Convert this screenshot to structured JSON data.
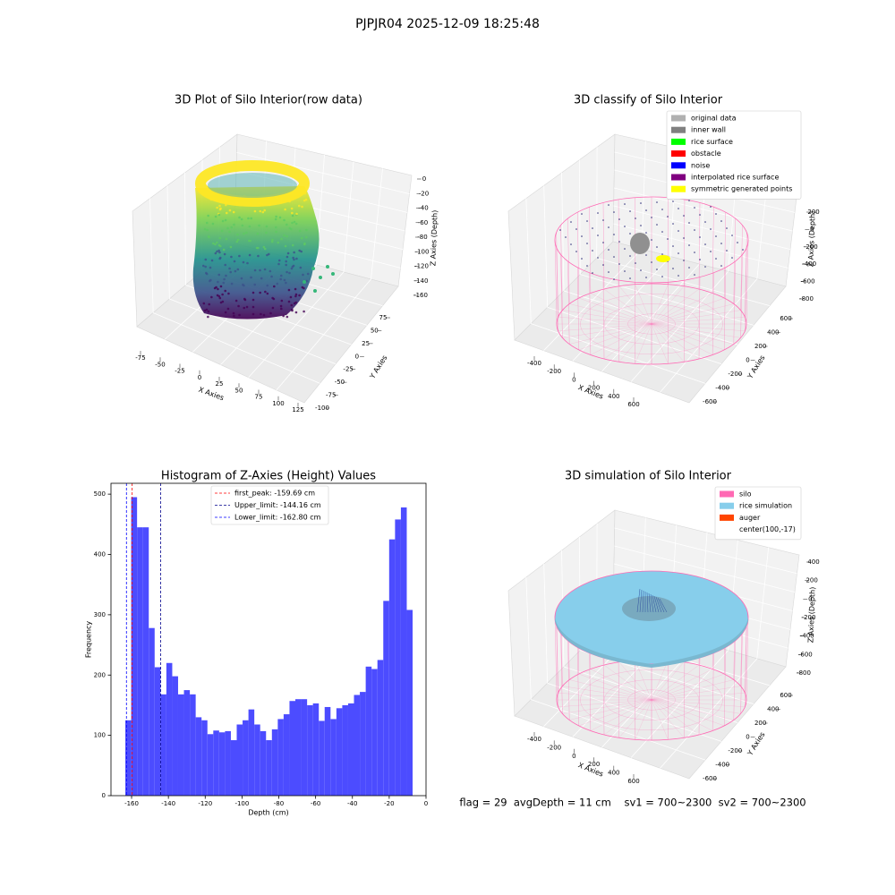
{
  "title": "PJPJR04 2025-12-09 18:25:48",
  "footer": "flag = 29  avgDepth = 11 cm    sv1 = 700~2300  sv2 = 700~2300",
  "chart_data": [
    {
      "type": "scatter3d",
      "title": "3D Plot of Silo Interior(row data)",
      "xlabel": "X Axies",
      "ylabel": "Y Axies",
      "zlabel": "Z Axies (Depth)",
      "xticks": [
        -75,
        -50,
        -25,
        0,
        25,
        50,
        75,
        100,
        125
      ],
      "yticks": [
        -100,
        -75,
        -50,
        -25,
        0,
        25,
        50,
        75
      ],
      "zticks": [
        0,
        -20,
        -40,
        -60,
        -80,
        -100,
        -120,
        -140,
        -160
      ]
    },
    {
      "type": "scatter3d",
      "title": "3D classify of Silo Interior",
      "xlabel": "X Axies",
      "ylabel": "Y Axies",
      "zlabel": "Z Axies (Depth)",
      "xticks": [
        -400,
        -200,
        0,
        200,
        400,
        600
      ],
      "yticks": [
        -600,
        -400,
        -200,
        0,
        200,
        400,
        600
      ],
      "zticks": [
        200,
        0,
        -200,
        -400,
        -600,
        -800
      ],
      "legend": [
        {
          "name": "original data",
          "color": "#b0b0b0"
        },
        {
          "name": "inner wall",
          "color": "#808080"
        },
        {
          "name": "rice surface",
          "color": "#00ff00"
        },
        {
          "name": "obstacle",
          "color": "#ff0000"
        },
        {
          "name": "noise",
          "color": "#0000ff"
        },
        {
          "name": "interpolated rice surface",
          "color": "#800080"
        },
        {
          "name": "symmetric generated points",
          "color": "#ffff00"
        }
      ]
    },
    {
      "type": "histogram",
      "title": "Histogram of Z-Axies (Height) Values",
      "xlabel": "Depth (cm)",
      "ylabel": "Frequency",
      "color": "#4c4cff",
      "bins": [
        -163.4,
        -160.21,
        -157.03,
        -153.84,
        -150.66,
        -147.47,
        -144.28,
        -141.1,
        -137.91,
        -134.73,
        -131.54,
        -128.35,
        -125.17,
        -121.98,
        -118.8,
        -115.61,
        -112.42,
        -109.24,
        -106.05,
        -102.87,
        -99.68,
        -96.49,
        -93.31,
        -90.12,
        -86.94,
        -83.75,
        -80.56,
        -77.38,
        -74.19,
        -71.01,
        -67.82,
        -64.63,
        -61.45,
        -58.26,
        -55.08,
        -51.89,
        -48.7,
        -45.52,
        -42.33,
        -39.15,
        -35.96,
        -32.77,
        -29.59,
        -26.4,
        -23.22,
        -20.03,
        -16.84,
        -13.66,
        -10.47,
        -7.29
      ],
      "values": [
        125,
        495,
        445,
        445,
        278,
        213,
        168,
        220,
        198,
        168,
        175,
        168,
        130,
        125,
        102,
        108,
        105,
        107,
        92,
        118,
        125,
        143,
        118,
        107,
        92,
        110,
        127,
        135,
        157,
        160,
        160,
        150,
        153,
        124,
        147,
        127,
        145,
        150,
        153,
        167,
        172,
        214,
        210,
        225,
        323,
        425,
        458,
        478,
        308
      ],
      "xlim": [
        -171.2,
        0
      ],
      "ylim": [
        0,
        518
      ],
      "xticks": [
        -160,
        -140,
        -120,
        -100,
        -80,
        -60,
        -40,
        -20,
        0
      ],
      "yticks": [
        0,
        100,
        200,
        300,
        400,
        500
      ],
      "lines": [
        {
          "label": "first_peak: -159.69 cm",
          "value": -159.69,
          "color": "#ff0000"
        },
        {
          "label": "Upper_limit: -144.16 cm",
          "value": -144.16,
          "color": "#00008b"
        },
        {
          "label": "Lower_limit: -162.80 cm",
          "value": -162.8,
          "color": "#0000ff"
        }
      ]
    },
    {
      "type": "scatter3d",
      "title": "3D simulation of Silo Interior",
      "xlabel": "X Axies",
      "ylabel": "Y Axies",
      "zlabel": "Z Axies (Depth)",
      "xticks": [
        -400,
        -200,
        0,
        200,
        400,
        600
      ],
      "yticks": [
        -600,
        -400,
        -200,
        0,
        200,
        400,
        600
      ],
      "zticks": [
        400,
        200,
        0,
        -200,
        -400,
        -600,
        -800
      ],
      "legend": [
        {
          "name": "silo",
          "color": "#ff69b4"
        },
        {
          "name": "rice simulation",
          "color": "#87ceeb"
        },
        {
          "name": "auger",
          "color": "#ff4500"
        },
        {
          "name": "center(100,-17)"
        }
      ]
    }
  ]
}
